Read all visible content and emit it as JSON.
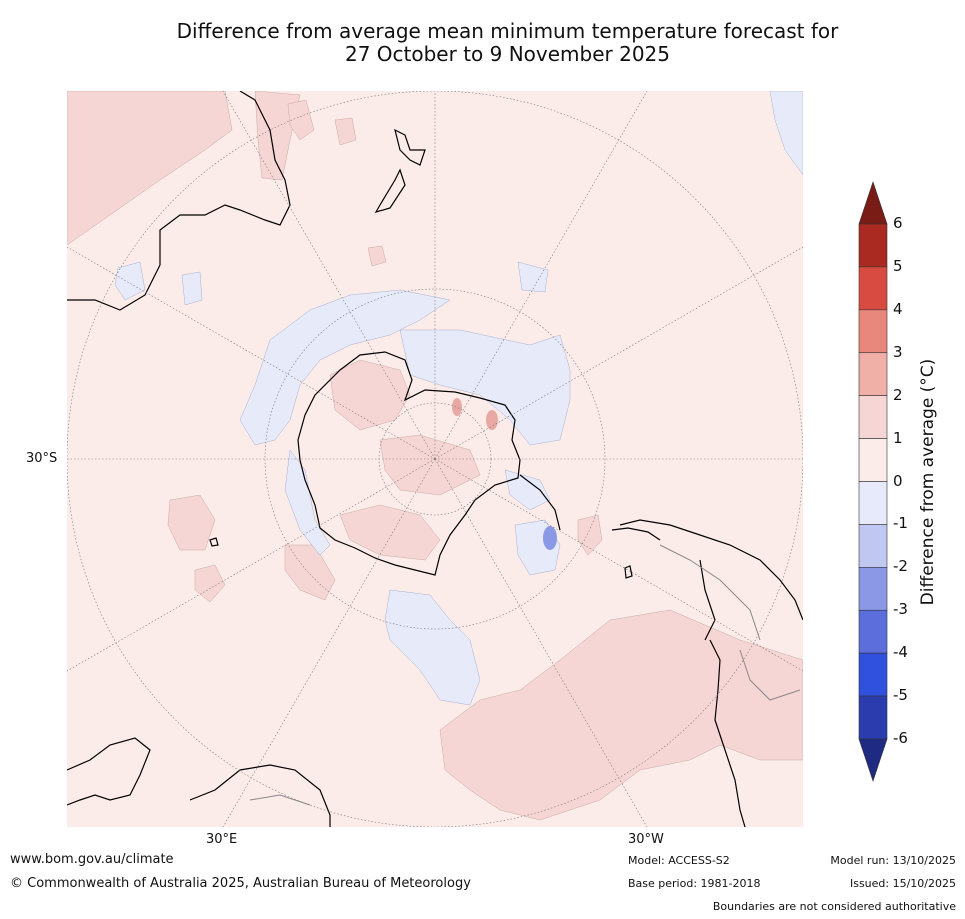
{
  "title": {
    "line1": "Difference from average mean minimum temperature forecast for",
    "line2": "27 October to 9 November 2025"
  },
  "map": {
    "projection": "south-polar stereographic",
    "lat_label": "30°S",
    "lon_labels": [
      "30°E",
      "30°W"
    ],
    "colors": {
      "land_bg": "#fbece9",
      "warm_1_2": "#f5d6d4",
      "warm_2_3": "#e8a9a4",
      "cool_0_m1": "#e6eaf9",
      "cool_m2_m3": "#8a98e6",
      "coast": "#000000",
      "borders": "#888888",
      "grid": "#777777"
    }
  },
  "colorbar": {
    "title": "Difference from average (°C)",
    "ticks": [
      "6",
      "5",
      "4",
      "3",
      "2",
      "1",
      "0",
      "-1",
      "-2",
      "-3",
      "-4",
      "-5",
      "-6"
    ],
    "colors": [
      "#aa2a22",
      "#d84b40",
      "#e8877c",
      "#f0b0a8",
      "#f5d6d4",
      "#fbece9",
      "#e7eafa",
      "#c0c7f1",
      "#8a98e6",
      "#5b6edb",
      "#3050de",
      "#2a3cae"
    ],
    "over_color": "#7a1c16",
    "under_color": "#1f2b82"
  },
  "footer": {
    "url": "www.bom.gov.au/climate",
    "copyright": "© Commonwealth of Australia 2025, Australian Bureau of Meteorology",
    "model": "Model: ACCESS-S2",
    "base_period": "Base period: 1981-2018",
    "model_run": "Model run: 13/10/2025",
    "issued": "Issued: 15/10/2025",
    "disclaimer": "Boundaries are not considered authoritative"
  }
}
